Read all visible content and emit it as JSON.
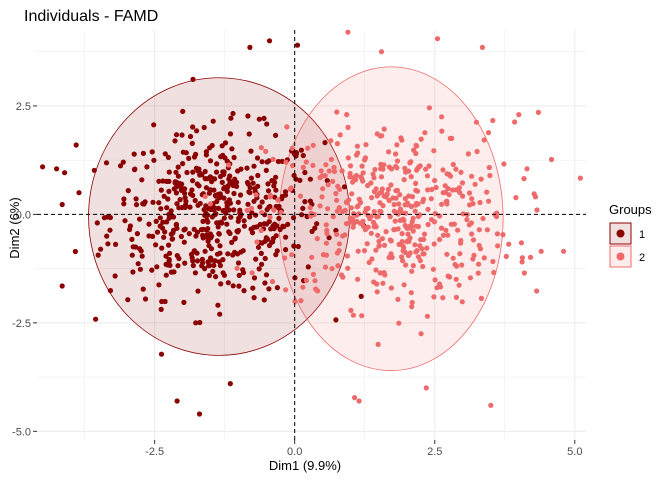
{
  "chart_data": {
    "type": "scatter",
    "title": "Individuals - FAMD",
    "xlabel": "Dim1 (9.9%)",
    "ylabel": "Dim2 (6%)",
    "xlim": [
      -4.6,
      5.2
    ],
    "ylim": [
      -5.2,
      4.25
    ],
    "x_ticks": [
      -2.5,
      0,
      2.5,
      5
    ],
    "x_tick_labels": [
      "-2.5",
      "0.0",
      "2.5",
      "5.0"
    ],
    "y_ticks": [
      -5,
      -2.5,
      0,
      2.5
    ],
    "y_tick_labels": [
      "-5.0",
      "-2.5",
      "0.0",
      "2.5"
    ],
    "grid": true,
    "reference_lines": {
      "x": 0,
      "y": 0,
      "style": "dashed"
    },
    "legend": {
      "title": "Groups",
      "position": "right"
    },
    "series": [
      {
        "name": "1",
        "color": "#8b0000",
        "n_points": 520,
        "center": [
          -1.4,
          0.0
        ],
        "spread": [
          0.95,
          0.95
        ],
        "ellipse": {
          "cx": -1.35,
          "cy": -0.05,
          "rx": 2.33,
          "ry": 3.2
        },
        "outliers": [
          [
            -4.15,
            -1.65
          ],
          [
            -4.25,
            1.05
          ],
          [
            -2.1,
            -4.3
          ],
          [
            -1.7,
            -4.6
          ],
          [
            -1.15,
            -3.9
          ],
          [
            0.05,
            3.9
          ],
          [
            -0.8,
            3.85
          ],
          [
            -0.45,
            4.0
          ],
          [
            -3.9,
            1.6
          ],
          [
            -3.85,
            0.5
          ]
        ]
      },
      {
        "name": "2",
        "color": "#ee6a6a",
        "n_points": 480,
        "center": [
          1.7,
          0.0
        ],
        "spread": [
          1.1,
          1.05
        ],
        "ellipse": {
          "cx": 1.72,
          "cy": -0.1,
          "rx": 2.0,
          "ry": 3.5
        },
        "outliers": [
          [
            4.35,
            2.35
          ],
          [
            4.8,
            -0.85
          ],
          [
            4.4,
            -0.85
          ],
          [
            4.1,
            -1.35
          ],
          [
            3.5,
            -4.4
          ],
          [
            2.35,
            -4.0
          ],
          [
            1.15,
            -4.3
          ],
          [
            0.95,
            4.2
          ],
          [
            2.55,
            4.05
          ],
          [
            3.35,
            3.85
          ],
          [
            1.55,
            3.75
          ],
          [
            4.0,
            2.3
          ]
        ]
      }
    ]
  }
}
